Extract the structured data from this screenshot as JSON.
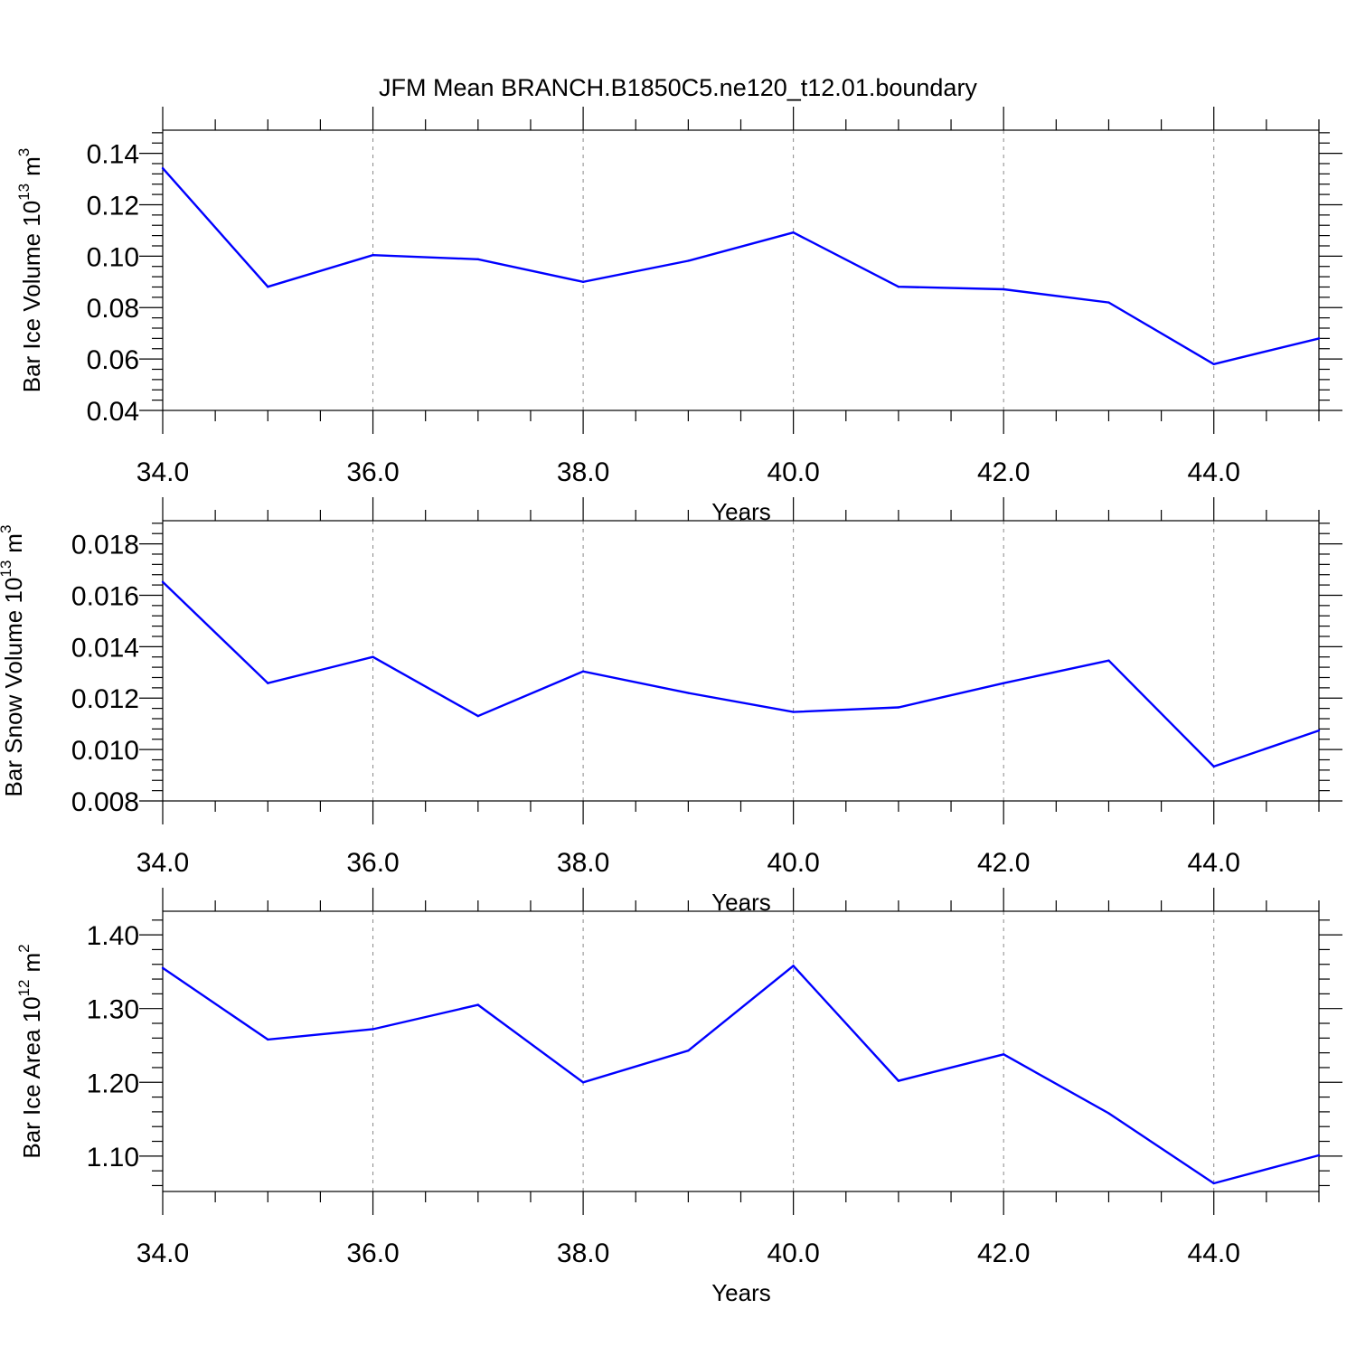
{
  "title": "JFM Mean BRANCH.B1850C5.ne120_t12.01.boundary",
  "line_color": "#0000ff",
  "chart_data": [
    {
      "type": "line",
      "ylabel_base": "Bar Ice Volume 10",
      "ylabel_exp": "13",
      "ylabel_unit": "m",
      "ylabel_unit_exp": "3",
      "xlabel": "Years",
      "x": [
        34,
        35,
        36,
        37,
        38,
        39,
        40,
        41,
        42,
        43,
        44,
        45
      ],
      "values": [
        0.1342,
        0.0881,
        0.1004,
        0.0988,
        0.09,
        0.0982,
        0.1092,
        0.0881,
        0.0871,
        0.082,
        0.058,
        0.068
      ],
      "xlim": [
        34,
        45
      ],
      "ylim": [
        0.04,
        0.149
      ],
      "xticks": [
        34,
        36,
        38,
        40,
        42,
        44
      ],
      "xtick_labels": [
        "34.0",
        "36.0",
        "38.0",
        "40.0",
        "42.0",
        "44.0"
      ],
      "yticks": [
        0.04,
        0.06,
        0.08,
        0.1,
        0.12,
        0.14
      ],
      "ytick_labels": [
        "0.04",
        "0.06",
        "0.08",
        "0.10",
        "0.12",
        "0.14"
      ]
    },
    {
      "type": "line",
      "ylabel_base": "Bar Snow Volume 10",
      "ylabel_exp": "13",
      "ylabel_unit": "m",
      "ylabel_unit_exp": "3",
      "xlabel": "Years",
      "x": [
        34,
        35,
        36,
        37,
        38,
        39,
        40,
        41,
        42,
        43,
        44,
        45
      ],
      "values": [
        0.01652,
        0.01258,
        0.0136,
        0.0113,
        0.01304,
        0.0122,
        0.01146,
        0.01164,
        0.01258,
        0.01346,
        0.00934,
        0.01074
      ],
      "xlim": [
        34,
        45
      ],
      "ylim": [
        0.008,
        0.0189
      ],
      "xticks": [
        34,
        36,
        38,
        40,
        42,
        44
      ],
      "xtick_labels": [
        "34.0",
        "36.0",
        "38.0",
        "40.0",
        "42.0",
        "44.0"
      ],
      "yticks": [
        0.008,
        0.01,
        0.012,
        0.014,
        0.016,
        0.018
      ],
      "ytick_labels": [
        "0.008",
        "0.010",
        "0.012",
        "0.014",
        "0.016",
        "0.018"
      ]
    },
    {
      "type": "line",
      "ylabel_base": "Bar Ice Area 10",
      "ylabel_exp": "12",
      "ylabel_unit": "m",
      "ylabel_unit_exp": "2",
      "xlabel": "Years",
      "x": [
        34,
        35,
        36,
        37,
        38,
        39,
        40,
        41,
        42,
        43,
        44,
        45
      ],
      "values": [
        1.355,
        1.258,
        1.272,
        1.305,
        1.2,
        1.243,
        1.358,
        1.202,
        1.238,
        1.158,
        1.063,
        1.101
      ],
      "xlim": [
        34,
        45
      ],
      "ylim": [
        1.052,
        1.432
      ],
      "xticks": [
        34,
        36,
        38,
        40,
        42,
        44
      ],
      "xtick_labels": [
        "34.0",
        "36.0",
        "38.0",
        "40.0",
        "42.0",
        "44.0"
      ],
      "yticks": [
        1.1,
        1.2,
        1.3,
        1.4
      ],
      "ytick_labels": [
        "1.10",
        "1.20",
        "1.30",
        "1.40"
      ]
    }
  ]
}
